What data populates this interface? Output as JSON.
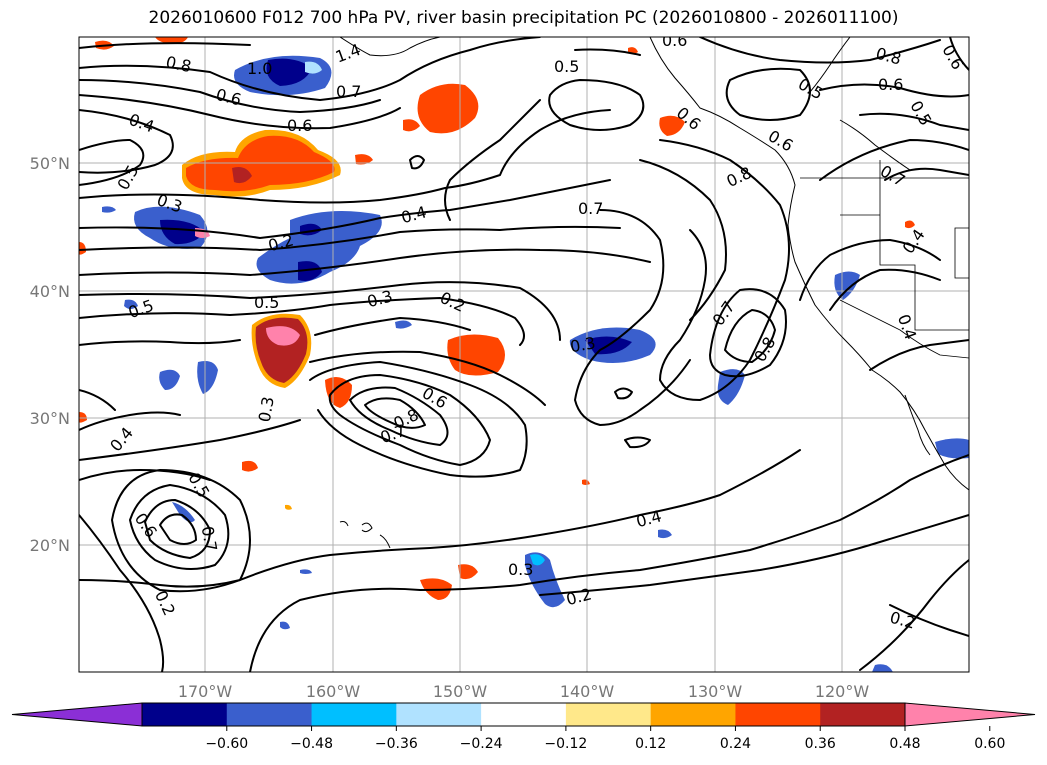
{
  "title": "2026010600 F012 700 hPa PV, river basin precipitation PC (2026010800 - 2026011100)",
  "lat_labels": [
    "50°N",
    "40°N",
    "30°N",
    "20°N"
  ],
  "lon_labels": [
    "170°W",
    "160°W",
    "150°W",
    "140°W",
    "130°W",
    "120°W"
  ],
  "colorbar": {
    "tick_labels": [
      "−0.60",
      "−0.48",
      "−0.36",
      "−0.24",
      "−0.12",
      "0.12",
      "0.24",
      "0.36",
      "0.48",
      "0.60"
    ],
    "colors": [
      "#8b2fd6",
      "#00008b",
      "#3a5fcd",
      "#00bfff",
      "#b0e2ff",
      "#ffffff",
      "#ffe88a",
      "#ffa500",
      "#ff4500",
      "#b22222",
      "#ff82ab"
    ]
  },
  "contour_labels": [
    {
      "text": "0.8"
    },
    {
      "text": "1.0"
    },
    {
      "text": "0.7"
    },
    {
      "text": "0.6"
    },
    {
      "text": "1.4"
    },
    {
      "text": "0.6"
    },
    {
      "text": "0.4"
    },
    {
      "text": "0.6"
    },
    {
      "text": "0.5"
    },
    {
      "text": "0.3"
    },
    {
      "text": "0.2"
    },
    {
      "text": "0.4"
    },
    {
      "text": "0.5"
    },
    {
      "text": "0.5"
    },
    {
      "text": "0.3"
    },
    {
      "text": "0.2"
    },
    {
      "text": "0.7"
    },
    {
      "text": "0.5"
    },
    {
      "text": "0.6"
    },
    {
      "text": "0.8"
    },
    {
      "text": "0.5"
    },
    {
      "text": "0.6"
    },
    {
      "text": "0.5"
    },
    {
      "text": "0.6"
    },
    {
      "text": "0.8"
    },
    {
      "text": "0.7"
    },
    {
      "text": "0.4"
    },
    {
      "text": "0.7"
    },
    {
      "text": "0.8"
    },
    {
      "text": "0.3"
    },
    {
      "text": "0.4"
    },
    {
      "text": "0.3"
    },
    {
      "text": "0.6"
    },
    {
      "text": "0.8"
    },
    {
      "text": "0.7"
    },
    {
      "text": "0.4"
    },
    {
      "text": "0.5"
    },
    {
      "text": "0.7"
    },
    {
      "text": "0.6"
    },
    {
      "text": "0.2"
    },
    {
      "text": "0.4"
    },
    {
      "text": "0.3"
    },
    {
      "text": "0.2"
    },
    {
      "text": "0.2"
    },
    {
      "text": "0.6"
    }
  ]
}
